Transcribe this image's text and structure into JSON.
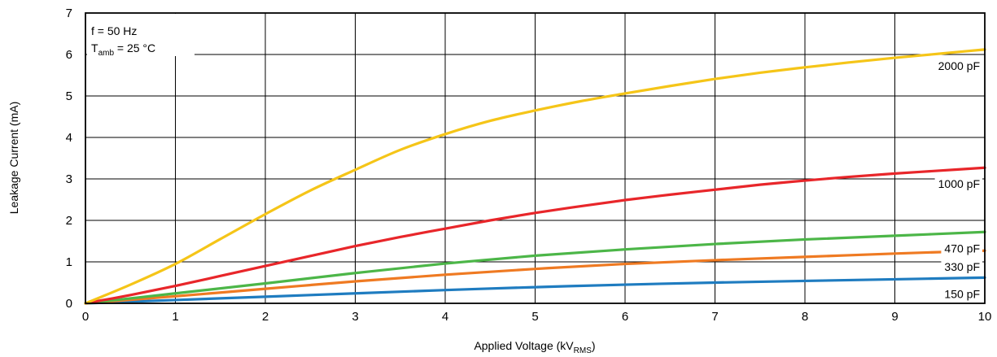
{
  "chart_data": {
    "type": "line",
    "xlabel": "Applied Voltage (kV",
    "xlabel_sub": "RMS",
    "xlabel_end": ")",
    "ylabel": "Leakage Current (mA)",
    "xlim": [
      0,
      10
    ],
    "ylim": [
      0,
      7
    ],
    "x_ticks": [
      "0",
      "1",
      "2",
      "3",
      "4",
      "5",
      "6",
      "7",
      "8",
      "9",
      "10"
    ],
    "y_ticks": [
      "0",
      "1",
      "2",
      "3",
      "4",
      "5",
      "6",
      "7"
    ],
    "grid": true,
    "annotation": {
      "line1": "f = 50 Hz",
      "line2_main": "T",
      "line2_sub": "amb",
      "line2_rest": " = 25 °C"
    },
    "series": [
      {
        "name": "2000 pF",
        "color": "#f5c518",
        "x": [
          0,
          0.5,
          1,
          1.5,
          2,
          2.5,
          3,
          3.5,
          4,
          4.5,
          5,
          5.5,
          6,
          6.5,
          7,
          7.5,
          8,
          8.5,
          9,
          9.5,
          10
        ],
        "y": [
          0,
          0.45,
          0.95,
          1.55,
          2.15,
          2.72,
          3.22,
          3.7,
          4.08,
          4.4,
          4.65,
          4.87,
          5.06,
          5.24,
          5.41,
          5.56,
          5.69,
          5.81,
          5.92,
          6.02,
          6.12
        ]
      },
      {
        "name": "1000 pF",
        "color": "#e8262a",
        "x": [
          0,
          0.5,
          1,
          1.5,
          2,
          2.5,
          3,
          3.5,
          4,
          4.5,
          5,
          5.5,
          6,
          6.5,
          7,
          7.5,
          8,
          8.5,
          9,
          9.5,
          10
        ],
        "y": [
          0,
          0.2,
          0.42,
          0.66,
          0.9,
          1.14,
          1.38,
          1.6,
          1.8,
          2.0,
          2.18,
          2.34,
          2.49,
          2.62,
          2.74,
          2.86,
          2.96,
          3.05,
          3.13,
          3.2,
          3.27
        ]
      },
      {
        "name": "470 pF",
        "color": "#4cb648",
        "x": [
          0,
          1,
          2,
          3,
          4,
          5,
          6,
          7,
          8,
          9,
          10
        ],
        "y": [
          0,
          0.24,
          0.48,
          0.73,
          0.96,
          1.15,
          1.3,
          1.43,
          1.54,
          1.63,
          1.72
        ]
      },
      {
        "name": "330 pF",
        "color": "#ef7a22",
        "x": [
          0,
          1,
          2,
          3,
          4,
          5,
          6,
          7,
          8,
          9,
          10
        ],
        "y": [
          0,
          0.17,
          0.35,
          0.53,
          0.69,
          0.83,
          0.95,
          1.04,
          1.12,
          1.2,
          1.27
        ]
      },
      {
        "name": "150 pF",
        "color": "#1f7cc0",
        "x": [
          0,
          1,
          2,
          3,
          4,
          5,
          6,
          7,
          8,
          9,
          10
        ],
        "y": [
          0,
          0.08,
          0.16,
          0.24,
          0.32,
          0.39,
          0.45,
          0.5,
          0.54,
          0.58,
          0.62
        ]
      }
    ]
  }
}
